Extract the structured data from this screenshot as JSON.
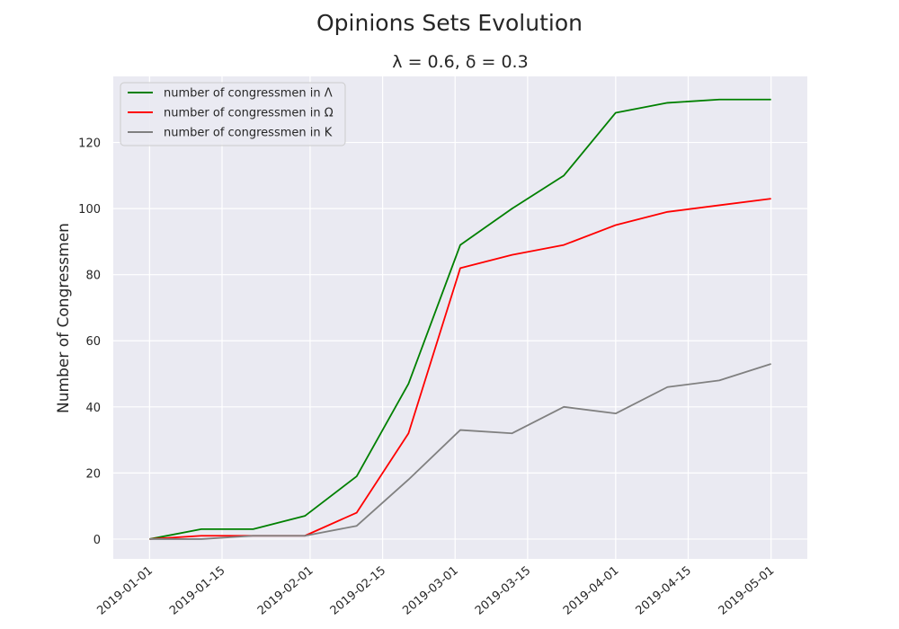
{
  "chart_data": {
    "type": "line",
    "title": "Opinions Sets Evolution",
    "subtitle": "λ = 0.6, δ = 0.3",
    "xlabel": "",
    "ylabel": "Number of Congressmen",
    "x": [
      "2019-01-01",
      "2019-01-11",
      "2019-01-21",
      "2019-01-31",
      "2019-02-10",
      "2019-02-20",
      "2019-03-02",
      "2019-03-12",
      "2019-03-22",
      "2019-04-01",
      "2019-04-11",
      "2019-04-21",
      "2019-05-01"
    ],
    "x_ticks": [
      "2019-01-01",
      "2019-01-15",
      "2019-02-01",
      "2019-02-15",
      "2019-03-01",
      "2019-03-15",
      "2019-04-01",
      "2019-04-15",
      "2019-05-01"
    ],
    "y_ticks": [
      0,
      20,
      40,
      60,
      80,
      100,
      120
    ],
    "xlim": [
      "2018-12-25",
      "2019-05-08"
    ],
    "ylim": [
      -6,
      140
    ],
    "grid": true,
    "legend_position": "top-left",
    "series": [
      {
        "name": "number of congressmen in Λ",
        "color": "#008000",
        "values": [
          0,
          3,
          3,
          7,
          19,
          47,
          89,
          100,
          110,
          129,
          132,
          133,
          133
        ]
      },
      {
        "name": "number of congressmen in Ω",
        "color": "#ff0000",
        "values": [
          0,
          1,
          1,
          1,
          8,
          32,
          82,
          86,
          89,
          95,
          99,
          101,
          103
        ]
      },
      {
        "name": "number of congressmen in Κ",
        "color": "#808080",
        "values": [
          0,
          0,
          1,
          1,
          4,
          18,
          33,
          32,
          40,
          38,
          46,
          48,
          53
        ]
      }
    ],
    "colors": {
      "plot_background": "#eaeaf2",
      "grid": "#ffffff"
    }
  }
}
